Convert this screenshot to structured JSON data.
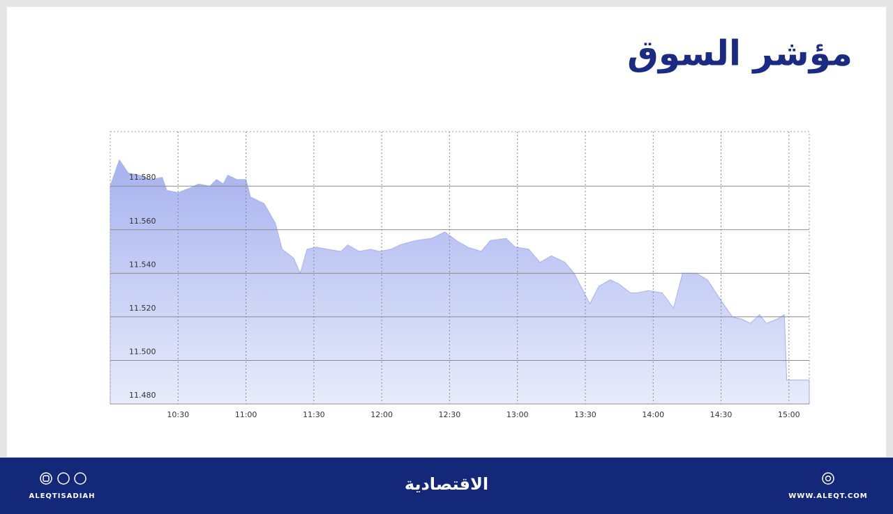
{
  "header": {
    "title": "مؤشر السوق"
  },
  "chart_data": {
    "type": "area",
    "color": "#a7b2ef",
    "x": [
      600,
      604,
      608,
      613,
      618,
      623,
      625,
      630,
      635,
      639,
      644,
      647,
      650,
      652,
      656,
      660,
      662,
      668,
      673,
      676,
      681,
      684,
      687,
      691,
      696,
      702,
      705,
      710,
      715,
      719,
      724,
      728,
      735,
      742,
      748,
      753,
      758,
      764,
      768,
      775,
      779,
      785,
      790,
      795,
      801,
      805,
      812,
      816,
      821,
      825,
      830,
      833,
      838,
      844,
      849,
      853,
      859,
      864,
      869,
      875,
      879,
      883,
      887,
      890,
      895,
      898,
      899,
      909
    ],
    "values": [
      11.58,
      11.592,
      11.586,
      11.585,
      11.583,
      11.584,
      11.578,
      11.577,
      11.579,
      11.581,
      11.58,
      11.583,
      11.581,
      11.585,
      11.583,
      11.583,
      11.575,
      11.572,
      11.563,
      11.551,
      11.547,
      11.54,
      11.551,
      11.552,
      11.551,
      11.55,
      11.553,
      11.55,
      11.551,
      11.55,
      11.551,
      11.553,
      11.555,
      11.556,
      11.559,
      11.555,
      11.552,
      11.55,
      11.555,
      11.556,
      11.552,
      11.551,
      11.545,
      11.548,
      11.545,
      11.54,
      11.526,
      11.534,
      11.537,
      11.535,
      11.531,
      11.531,
      11.532,
      11.531,
      11.524,
      11.54,
      11.54,
      11.537,
      11.529,
      11.52,
      11.519,
      11.517,
      11.521,
      11.517,
      11.519,
      11.521,
      11.491,
      11.491
    ],
    "xlim": [
      600,
      909
    ],
    "xticks": [
      {
        "value": 630,
        "label": "10:30"
      },
      {
        "value": 660,
        "label": "11:00"
      },
      {
        "value": 690,
        "label": "11:30"
      },
      {
        "value": 720,
        "label": "12:00"
      },
      {
        "value": 750,
        "label": "12:30"
      },
      {
        "value": 780,
        "label": "13:00"
      },
      {
        "value": 810,
        "label": "13:30"
      },
      {
        "value": 840,
        "label": "14:00"
      },
      {
        "value": 870,
        "label": "14:30"
      },
      {
        "value": 900,
        "label": "15:00"
      }
    ],
    "ylim": [
      11.48,
      11.605
    ],
    "yticks": [
      {
        "value": 11.48,
        "label": "11.480"
      },
      {
        "value": 11.5,
        "label": "11.500"
      },
      {
        "value": 11.52,
        "label": "11.520"
      },
      {
        "value": 11.54,
        "label": "11.540"
      },
      {
        "value": 11.56,
        "label": "11.560"
      },
      {
        "value": 11.58,
        "label": "11.580"
      }
    ],
    "grid": true
  },
  "footer": {
    "social": "ALEQTISADIAH",
    "logo": "الاقتصادية",
    "website": "WWW.ALEQT.COM"
  }
}
